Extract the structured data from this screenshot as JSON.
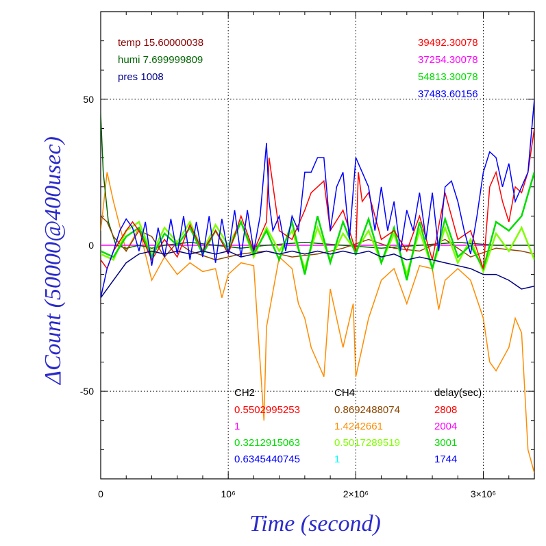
{
  "chart_data": {
    "type": "line",
    "xlabel": "Time (second)",
    "ylabel": "ΔCount (50000@400usec)",
    "xlim": [
      0,
      3400000
    ],
    "ylim": [
      -80,
      80
    ],
    "grid": true,
    "x_ticks": [
      {
        "value": 0,
        "label": "0"
      },
      {
        "value": 1000000,
        "label": "10⁶"
      },
      {
        "value": 2000000,
        "label": "2×10⁶"
      },
      {
        "value": 3000000,
        "label": "3×10⁶"
      }
    ],
    "y_ticks": [
      {
        "value": -50,
        "label": "-50"
      },
      {
        "value": 0,
        "label": "0"
      },
      {
        "value": 50,
        "label": "50"
      }
    ],
    "env_labels": [
      {
        "text": "temp 15.60000038",
        "color": "#8b0000"
      },
      {
        "text": "humi 7.699999809",
        "color": "#006400"
      },
      {
        "text": "pres 1008",
        "color": "#00008b"
      }
    ],
    "right_values": [
      {
        "text": "39492.30078",
        "color": "#ff0000"
      },
      {
        "text": "37254.30078",
        "color": "#ff00ff"
      },
      {
        "text": "54813.30078",
        "color": "#00dd00"
      },
      {
        "text": "37483.60156",
        "color": "#0000ff"
      }
    ],
    "legend_table": {
      "headers": [
        "CH2",
        "CH4",
        "delay(sec)"
      ],
      "rows": [
        {
          "ch2": "0.5502995253",
          "ch2_color": "#ff0000",
          "ch4": "0.8692488074",
          "ch4_color": "#8b4500",
          "delay": "2808",
          "delay_color": "#ff0000"
        },
        {
          "ch2": "1",
          "ch2_color": "#ff00ff",
          "ch4": "1.4242661",
          "ch4_color": "#ff8c00",
          "delay": "2004",
          "delay_color": "#ff00ff"
        },
        {
          "ch2": "0.3212915063",
          "ch2_color": "#00dd00",
          "ch4": "0.5017289519",
          "ch4_color": "#7fff00",
          "delay": "3001",
          "delay_color": "#00dd00"
        },
        {
          "ch2": "0.6345440745",
          "ch2_color": "#0000ff",
          "ch4": "1",
          "ch4_color": "#00ffff",
          "delay": "1744",
          "delay_color": "#0000ff"
        }
      ]
    },
    "series": [
      {
        "color": "#ff8c00",
        "x": [
          0,
          50000,
          100000,
          200000,
          300000,
          400000,
          500000,
          600000,
          700000,
          800000,
          900000,
          950000,
          1000000,
          1100000,
          1200000,
          1280000,
          1300000,
          1400000,
          1500000,
          1550000,
          1600000,
          1650000,
          1700000,
          1750000,
          1800000,
          1900000,
          1980000,
          2000000,
          2050000,
          2100000,
          2200000,
          2300000,
          2400000,
          2500000,
          2600000,
          2650000,
          2700000,
          2800000,
          2900000,
          3000000,
          3050000,
          3100000,
          3200000,
          3250000,
          3300000,
          3350000,
          3400000
        ],
        "y": [
          5,
          25,
          15,
          -2,
          6,
          -12,
          -4,
          -10,
          -6,
          -9,
          -8,
          -18,
          -10,
          -6,
          -7,
          -60,
          -28,
          -4,
          -8,
          -20,
          -25,
          -35,
          -40,
          -45,
          -15,
          -35,
          -20,
          -45,
          -35,
          -25,
          -12,
          -8,
          -20,
          -7,
          -8,
          -22,
          -12,
          -8,
          -12,
          -25,
          -40,
          -43,
          -35,
          -25,
          -30,
          -70,
          -78
        ]
      },
      {
        "color": "#ff00ff",
        "x": [
          0,
          3400000
        ],
        "y": [
          0,
          0
        ]
      },
      {
        "color": "#006400",
        "x": [
          0,
          20000,
          60000,
          120000,
          200000,
          300000,
          400000,
          500000,
          700000,
          900000,
          1100000,
          1300000,
          1600000,
          1900000,
          2200000,
          2500000,
          2800000,
          3100000,
          3400000
        ],
        "y": [
          45,
          25,
          8,
          0,
          -1,
          0,
          -1,
          0,
          1,
          0,
          -1,
          0,
          1,
          0,
          -1,
          0,
          1,
          0,
          0
        ]
      },
      {
        "color": "#8b4500",
        "x": [
          0,
          50000,
          100000,
          200000,
          300000,
          400000,
          500000,
          600000,
          700000,
          900000,
          1100000,
          1300000,
          1500000,
          1700000,
          1900000,
          2100000,
          2300000,
          2500000,
          2700000,
          2900000,
          3100000,
          3300000,
          3400000
        ],
        "y": [
          10,
          8,
          3,
          -2,
          5,
          3,
          -4,
          1,
          -2,
          -5,
          -3,
          -2,
          -4,
          -3,
          -1,
          2,
          -1,
          -2,
          2,
          -4,
          -1,
          -2,
          -3
        ]
      },
      {
        "color": "#7fff00",
        "x": [
          0,
          100000,
          200000,
          300000,
          400000,
          500000,
          600000,
          700000,
          800000,
          900000,
          1000000,
          1100000,
          1200000,
          1300000,
          1400000,
          1500000,
          1600000,
          1700000,
          1800000,
          1900000,
          2000000,
          2100000,
          2200000,
          2300000,
          2400000,
          2500000,
          2600000,
          2700000,
          2800000,
          2900000,
          3000000,
          3100000,
          3200000,
          3300000,
          3400000
        ],
        "y": [
          -3,
          -5,
          5,
          8,
          -3,
          6,
          1,
          8,
          -2,
          7,
          0,
          8,
          -4,
          6,
          -2,
          5,
          -8,
          6,
          -5,
          4,
          -2,
          5,
          -6,
          4,
          -10,
          5,
          -8,
          6,
          -6,
          2,
          -9,
          4,
          -2,
          6,
          -5
        ]
      },
      {
        "color": "#00dd00",
        "x": [
          0,
          100000,
          200000,
          300000,
          400000,
          500000,
          600000,
          700000,
          800000,
          900000,
          1000000,
          1100000,
          1200000,
          1300000,
          1400000,
          1500000,
          1600000,
          1700000,
          1800000,
          1900000,
          2000000,
          2100000,
          2200000,
          2300000,
          2400000,
          2500000,
          2600000,
          2700000,
          2800000,
          2900000,
          3000000,
          3100000,
          3200000,
          3300000,
          3400000
        ],
        "y": [
          -2,
          -4,
          3,
          6,
          -4,
          4,
          0,
          6,
          -3,
          5,
          -2,
          8,
          -3,
          5,
          -5,
          8,
          -10,
          10,
          -6,
          8,
          -3,
          9,
          -6,
          6,
          -12,
          8,
          -8,
          9,
          -4,
          0,
          -8,
          8,
          5,
          10,
          25
        ]
      },
      {
        "color": "#ff0000",
        "x": [
          0,
          50000,
          100000,
          200000,
          250000,
          300000,
          400000,
          500000,
          600000,
          700000,
          800000,
          900000,
          1000000,
          1100000,
          1200000,
          1300000,
          1320000,
          1400000,
          1500000,
          1600000,
          1650000,
          1700000,
          1750000,
          1800000,
          1900000,
          2000000,
          2020000,
          2050000,
          2100000,
          2200000,
          2300000,
          2400000,
          2500000,
          2600000,
          2700000,
          2800000,
          2900000,
          3000000,
          3050000,
          3100000,
          3150000,
          3200000,
          3250000,
          3300000,
          3350000,
          3400000
        ],
        "y": [
          -5,
          -8,
          -2,
          5,
          8,
          5,
          -5,
          2,
          -4,
          7,
          -2,
          5,
          -3,
          10,
          -2,
          8,
          30,
          5,
          2,
          12,
          18,
          20,
          22,
          5,
          12,
          -2,
          25,
          15,
          18,
          2,
          5,
          -2,
          10,
          -5,
          18,
          2,
          5,
          -8,
          20,
          25,
          15,
          8,
          20,
          18,
          25,
          40
        ]
      },
      {
        "color": "#0000ff",
        "x": [
          0,
          50000,
          100000,
          150000,
          200000,
          250000,
          300000,
          350000,
          400000,
          450000,
          500000,
          550000,
          600000,
          650000,
          700000,
          750000,
          800000,
          850000,
          900000,
          950000,
          1000000,
          1050000,
          1100000,
          1150000,
          1200000,
          1250000,
          1300000,
          1320000,
          1350000,
          1400000,
          1450000,
          1500000,
          1550000,
          1600000,
          1650000,
          1700000,
          1750000,
          1800000,
          1850000,
          1900000,
          1950000,
          2000000,
          2050000,
          2100000,
          2150000,
          2200000,
          2250000,
          2300000,
          2350000,
          2400000,
          2450000,
          2500000,
          2550000,
          2600000,
          2650000,
          2700000,
          2750000,
          2800000,
          2850000,
          2900000,
          2950000,
          3000000,
          3050000,
          3100000,
          3150000,
          3200000,
          3250000,
          3300000,
          3350000,
          3400000
        ],
        "y": [
          -18,
          -8,
          -2,
          5,
          9,
          6,
          -2,
          8,
          -7,
          6,
          -4,
          9,
          -3,
          10,
          -5,
          8,
          -4,
          10,
          -6,
          9,
          -3,
          12,
          -4,
          12,
          -2,
          10,
          35,
          15,
          5,
          10,
          -2,
          10,
          5,
          25,
          25,
          30,
          30,
          5,
          20,
          25,
          2,
          30,
          25,
          20,
          5,
          20,
          5,
          15,
          -2,
          12,
          5,
          18,
          2,
          18,
          -2,
          20,
          22,
          15,
          5,
          -3,
          10,
          25,
          32,
          30,
          20,
          28,
          15,
          20,
          25,
          50
        ]
      },
      {
        "color": "#000080",
        "x": [
          0,
          100000,
          200000,
          300000,
          400000,
          500000,
          600000,
          700000,
          800000,
          900000,
          1000000,
          1100000,
          1200000,
          1300000,
          1400000,
          1500000,
          1600000,
          1700000,
          1800000,
          1900000,
          2000000,
          2100000,
          2200000,
          2300000,
          2400000,
          2500000,
          2600000,
          2700000,
          2800000,
          2900000,
          3000000,
          3100000,
          3200000,
          3300000,
          3400000
        ],
        "y": [
          -18,
          -12,
          -6,
          -3,
          -2,
          -3,
          -2,
          -3,
          -2,
          -3,
          -2,
          -4,
          -3,
          -2,
          -3,
          -2,
          -3,
          -2,
          -3,
          -2,
          -3,
          -2,
          -4,
          -3,
          -5,
          -4,
          -5,
          -6,
          -7,
          -8,
          -10,
          -10,
          -12,
          -15,
          -14
        ]
      }
    ]
  }
}
